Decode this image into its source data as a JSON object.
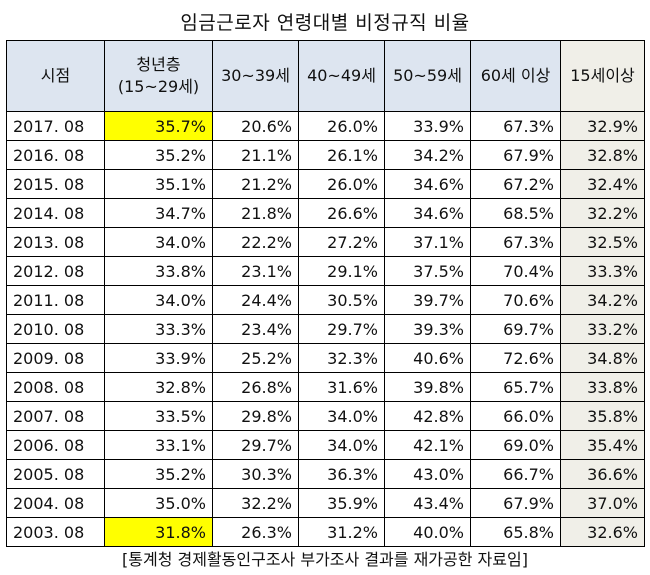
{
  "title": "임금근로자 연령대별 비정규직 비율",
  "headers": {
    "period": "시점",
    "youth_line1": "청년층",
    "youth_line2": "(15~29세)",
    "age30": "30~39세",
    "age40": "40~49세",
    "age50": "50~59세",
    "age60": "60세 이상",
    "age15plus": "15세이상"
  },
  "rows": [
    {
      "period": "2017. 08",
      "values": [
        "35.7%",
        "20.6%",
        "26.0%",
        "33.9%",
        "67.3%",
        "32.9%"
      ],
      "highlight_youth": true
    },
    {
      "period": "2016. 08",
      "values": [
        "35.2%",
        "21.1%",
        "26.1%",
        "34.2%",
        "67.9%",
        "32.8%"
      ],
      "highlight_youth": false
    },
    {
      "period": "2015. 08",
      "values": [
        "35.1%",
        "21.2%",
        "26.0%",
        "34.6%",
        "67.2%",
        "32.4%"
      ],
      "highlight_youth": false
    },
    {
      "period": "2014. 08",
      "values": [
        "34.7%",
        "21.8%",
        "26.6%",
        "34.6%",
        "68.5%",
        "32.2%"
      ],
      "highlight_youth": false
    },
    {
      "period": "2013. 08",
      "values": [
        "34.0%",
        "22.2%",
        "27.2%",
        "37.1%",
        "67.3%",
        "32.5%"
      ],
      "highlight_youth": false
    },
    {
      "period": "2012. 08",
      "values": [
        "33.8%",
        "23.1%",
        "29.1%",
        "37.5%",
        "70.4%",
        "33.3%"
      ],
      "highlight_youth": false
    },
    {
      "period": "2011. 08",
      "values": [
        "34.0%",
        "24.4%",
        "30.5%",
        "39.7%",
        "70.6%",
        "34.2%"
      ],
      "highlight_youth": false
    },
    {
      "period": "2010. 08",
      "values": [
        "33.3%",
        "23.4%",
        "29.7%",
        "39.3%",
        "69.7%",
        "33.2%"
      ],
      "highlight_youth": false
    },
    {
      "period": "2009. 08",
      "values": [
        "33.9%",
        "25.2%",
        "32.3%",
        "40.6%",
        "72.6%",
        "34.8%"
      ],
      "highlight_youth": false
    },
    {
      "period": "2008. 08",
      "values": [
        "32.8%",
        "26.8%",
        "31.6%",
        "39.8%",
        "65.7%",
        "33.8%"
      ],
      "highlight_youth": false
    },
    {
      "period": "2007. 08",
      "values": [
        "33.5%",
        "29.8%",
        "34.0%",
        "42.8%",
        "66.0%",
        "35.8%"
      ],
      "highlight_youth": false
    },
    {
      "period": "2006. 08",
      "values": [
        "33.1%",
        "29.7%",
        "34.0%",
        "42.1%",
        "69.0%",
        "35.4%"
      ],
      "highlight_youth": false
    },
    {
      "period": "2005. 08",
      "values": [
        "35.2%",
        "30.3%",
        "36.3%",
        "43.0%",
        "66.7%",
        "36.6%"
      ],
      "highlight_youth": false
    },
    {
      "period": "2004. 08",
      "values": [
        "35.0%",
        "32.2%",
        "35.9%",
        "43.4%",
        "67.9%",
        "37.0%"
      ],
      "highlight_youth": false
    },
    {
      "period": "2003. 08",
      "values": [
        "31.8%",
        "26.3%",
        "31.2%",
        "40.0%",
        "65.8%",
        "32.6%"
      ],
      "highlight_youth": true
    }
  ],
  "caption": "[통계청 경제활동인구조사 부가조사 결과를 재가공한 자료임]",
  "colors": {
    "header_bg": "#dde5f0",
    "last_col_bg": "#f0efe8",
    "highlight": "#ffff00"
  }
}
